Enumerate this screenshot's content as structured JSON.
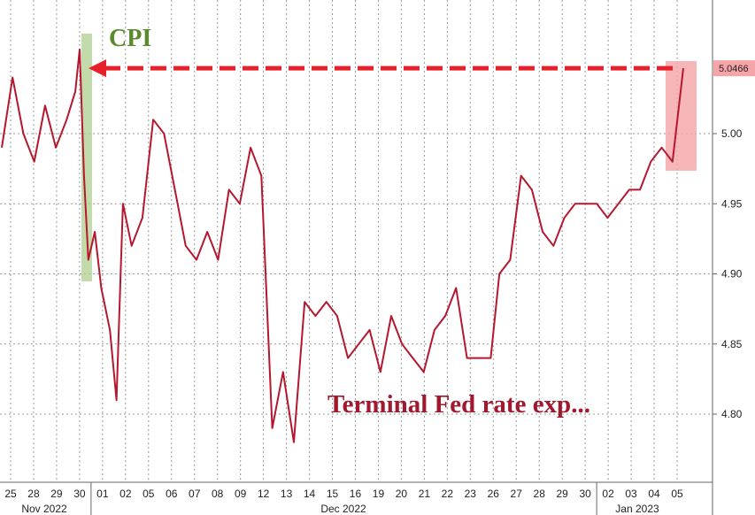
{
  "chart_data": {
    "type": "line",
    "title": "",
    "xlabel": "",
    "ylabel": "",
    "ylim": [
      4.76,
      5.1
    ],
    "y_ticks": [
      4.8,
      4.85,
      4.9,
      4.95,
      5.0
    ],
    "y_tick_labels": [
      "4.80",
      "4.85",
      "4.90",
      "4.95",
      "5.00"
    ],
    "x_tick_labels": [
      "25",
      "28",
      "29",
      "30",
      "01",
      "02",
      "05",
      "06",
      "07",
      "08",
      "09",
      "12",
      "13",
      "14",
      "15",
      "16",
      "19",
      "20",
      "21",
      "22",
      "23",
      "26",
      "27",
      "28",
      "29",
      "30",
      "02",
      "03",
      "04",
      "05"
    ],
    "month_labels": [
      "Nov 2022",
      "Dec 2022",
      "Jan 2023"
    ],
    "grid": true,
    "series": [
      {
        "color": "#b5172e",
        "x": [
          0,
          0.5,
          1,
          1.5,
          2,
          2.5,
          3,
          3.4,
          3.6,
          3.8,
          4,
          4.3,
          4.6,
          5,
          5.3,
          5.6,
          6,
          6.5,
          7,
          7.5,
          8,
          8.5,
          9,
          9.5,
          10,
          10.5,
          11,
          11.5,
          12,
          12.5,
          13,
          13.5,
          14,
          14.5,
          15,
          15.5,
          16,
          16.5,
          17,
          17.5,
          18,
          18.5,
          19,
          19.5,
          20,
          20.5,
          21,
          21.5,
          22,
          22.3,
          22.6,
          23,
          23.5,
          24,
          24.5,
          25,
          25.5,
          26,
          26.5,
          27,
          27.5,
          28,
          28.5,
          29,
          29.5,
          30,
          30.5,
          31,
          31.5
        ],
        "y": [
          4.99,
          5.04,
          5.0,
          4.98,
          5.02,
          4.99,
          5.01,
          5.03,
          5.06,
          4.97,
          4.91,
          4.93,
          4.89,
          4.86,
          4.81,
          4.95,
          4.92,
          4.94,
          5.01,
          5.0,
          4.96,
          4.92,
          4.91,
          4.93,
          4.91,
          4.96,
          4.95,
          4.99,
          4.97,
          4.79,
          4.83,
          4.78,
          4.88,
          4.87,
          4.88,
          4.87,
          4.84,
          4.85,
          4.86,
          4.83,
          4.87,
          4.85,
          4.84,
          4.83,
          4.86,
          4.87,
          4.89,
          4.84,
          4.84,
          4.84,
          4.84,
          4.9,
          4.91,
          4.97,
          4.96,
          4.93,
          4.92,
          4.94,
          4.95,
          4.95,
          4.95,
          4.94,
          4.95,
          4.96,
          4.96,
          4.98,
          4.99,
          4.98,
          5.0466
        ],
        "last_value_label": "5.0466"
      }
    ],
    "annotations": [
      {
        "text": "CPI",
        "color": "#5b8a2e"
      },
      {
        "text": "Terminal Fed rate exp...",
        "color": "#a0192e"
      }
    ],
    "highlight_green_color": "#a9cc86",
    "highlight_red_color": "#f5a5a8",
    "arrow_color": "#e8202a"
  }
}
